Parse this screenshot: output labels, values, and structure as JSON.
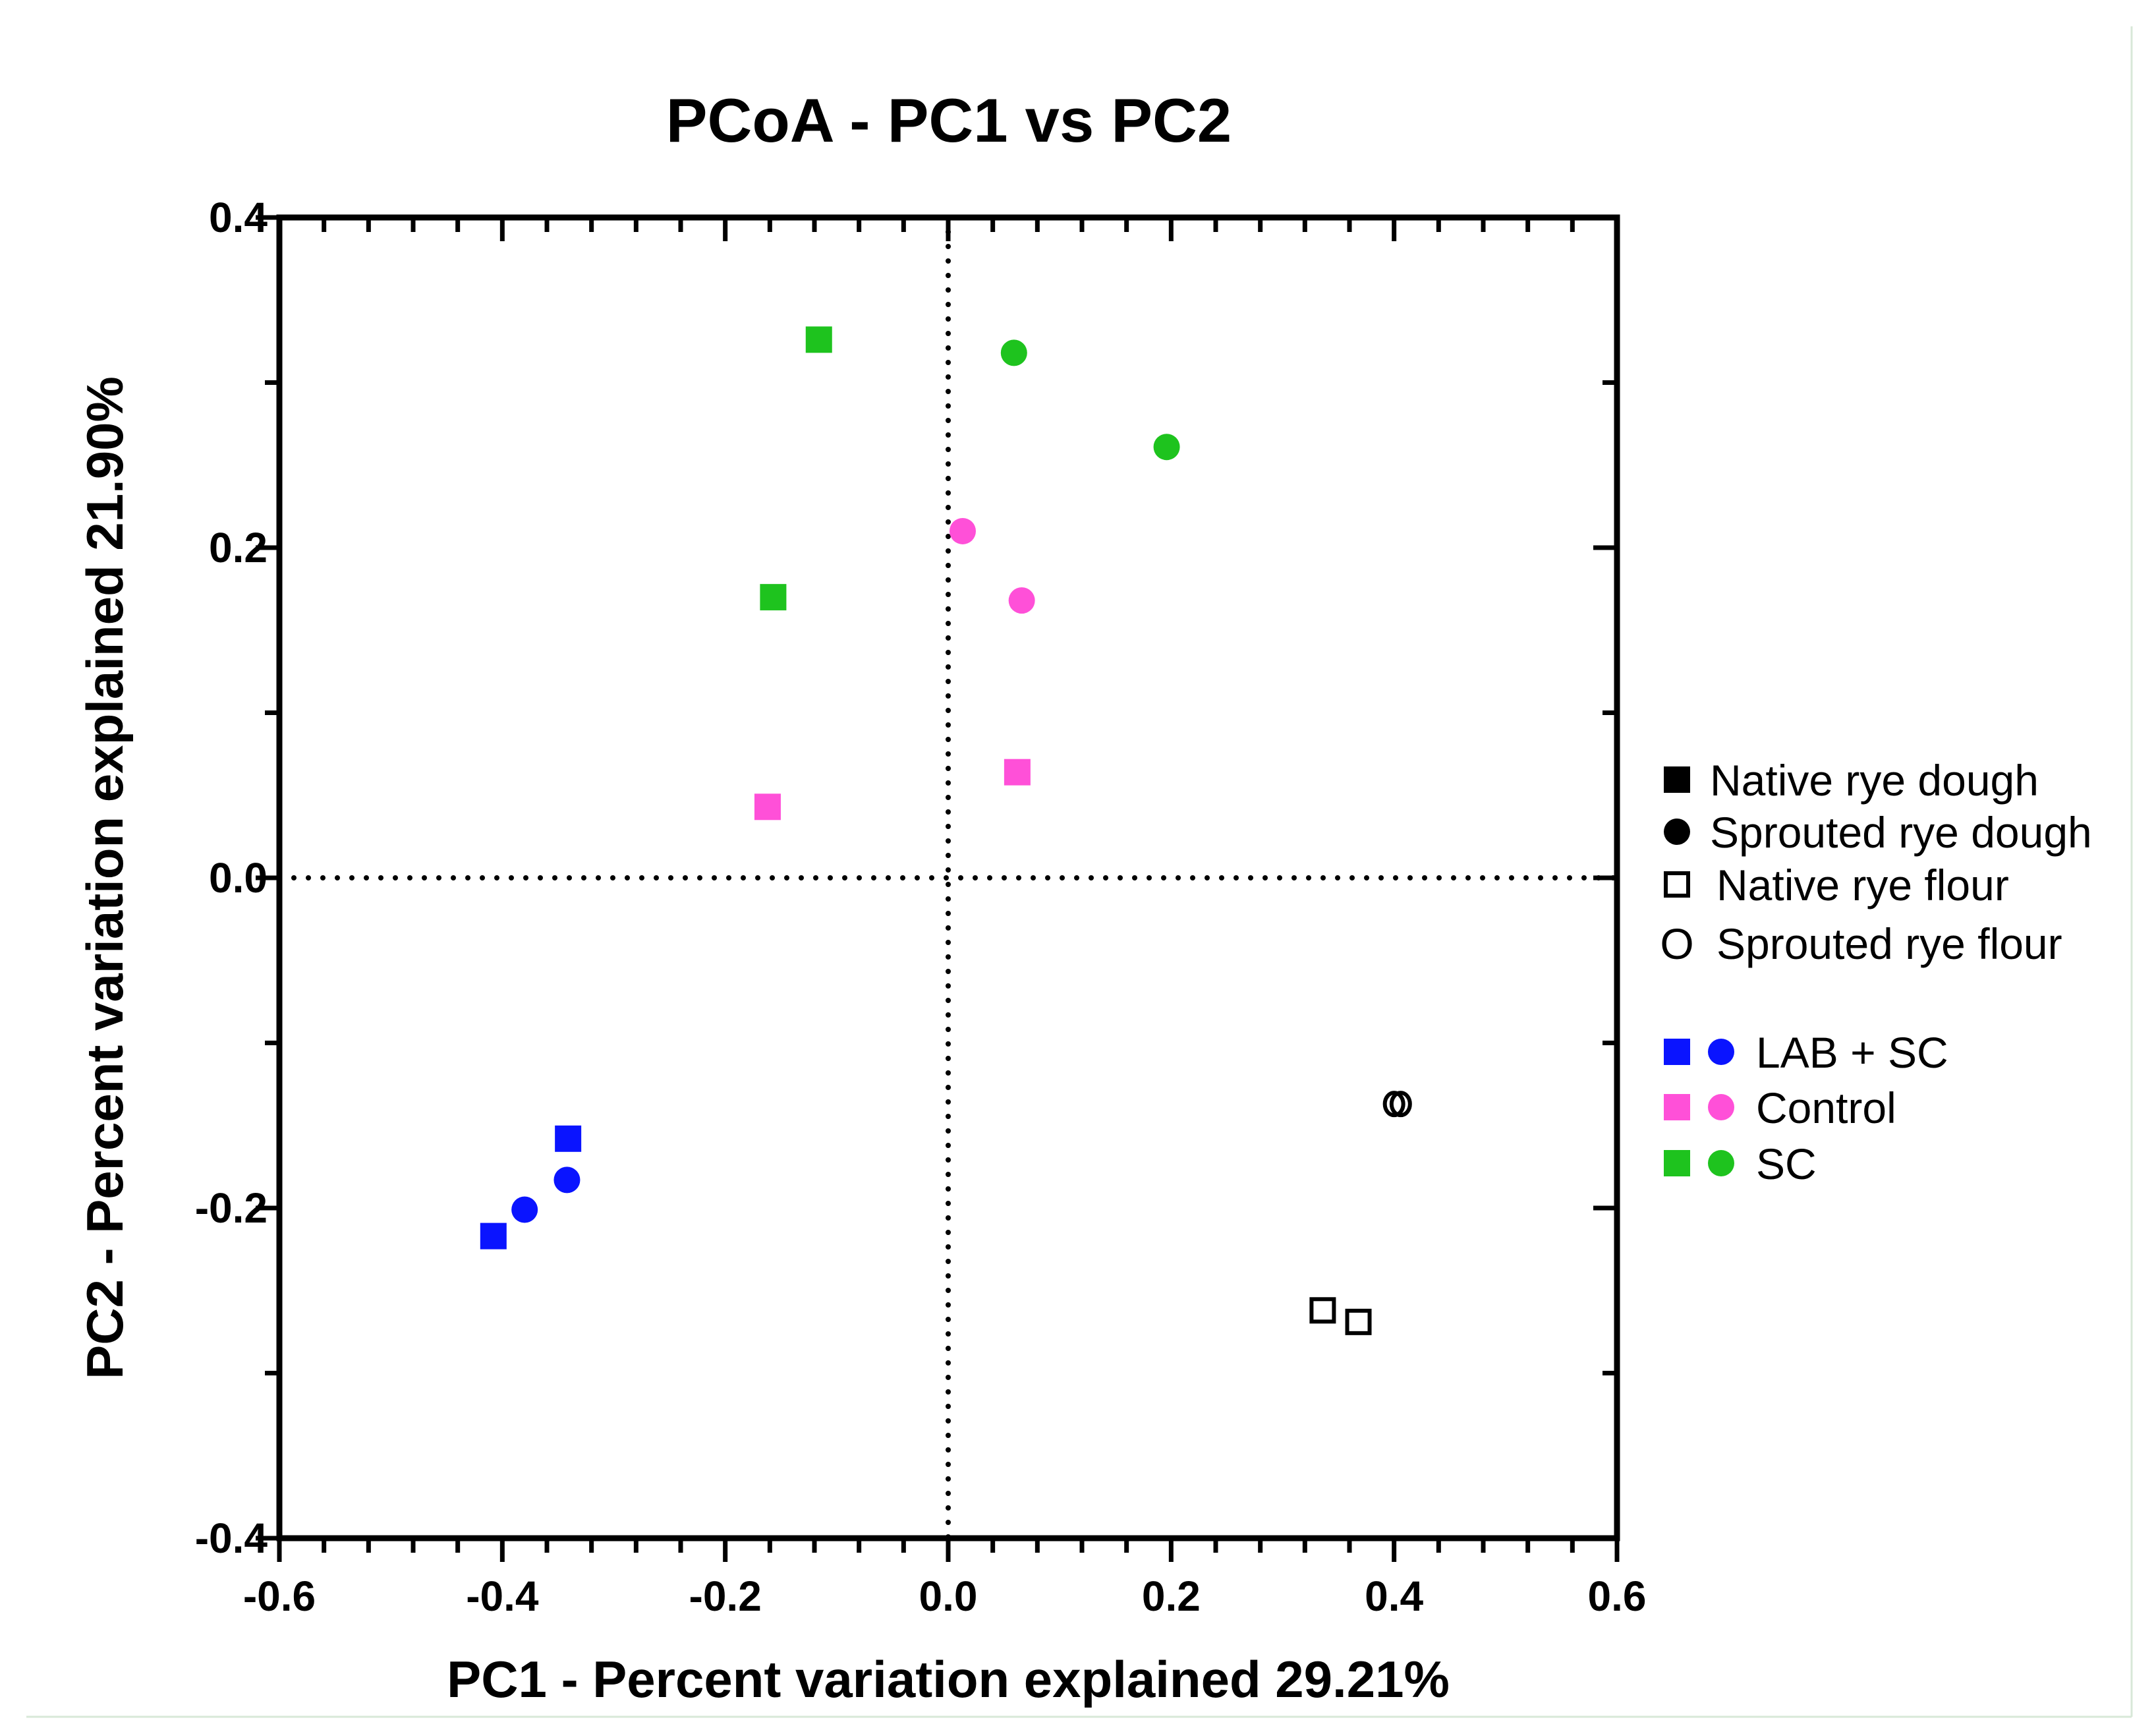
{
  "chart_data": {
    "type": "scatter",
    "title": "PCoA - PC1 vs PC2",
    "xlabel": "PC1 - Percent variation explained 29.21%",
    "ylabel": "PC2 - Percent variation explained 21.90%",
    "xlim": [
      -0.6,
      0.6
    ],
    "ylim": [
      -0.4,
      0.4
    ],
    "x_ticks": [
      "-0.6",
      "-0.4",
      "-0.2",
      "0.0",
      "0.2",
      "0.4",
      "0.6"
    ],
    "y_ticks": [
      "-0.4",
      "-0.2",
      "0.0",
      "0.2",
      "0.4"
    ],
    "reference_lines": {
      "x": 0.0,
      "y": 0.0,
      "style": "dotted"
    },
    "series": [
      {
        "name": "LAB + SC",
        "sample": "Native rye dough",
        "marker": "square-filled",
        "color": "#0a14ff",
        "points": [
          [
            -0.341,
            -0.158
          ],
          [
            -0.408,
            -0.217
          ]
        ]
      },
      {
        "name": "LAB + SC",
        "sample": "Sprouted rye dough",
        "marker": "circle-filled",
        "color": "#0a14ff",
        "points": [
          [
            -0.342,
            -0.183
          ],
          [
            -0.38,
            -0.201
          ]
        ]
      },
      {
        "name": "Control",
        "sample": "Native rye dough",
        "marker": "square-filled",
        "color": "#ff50d8",
        "points": [
          [
            -0.162,
            0.043
          ],
          [
            0.062,
            0.064
          ]
        ]
      },
      {
        "name": "Control",
        "sample": "Sprouted rye dough",
        "marker": "circle-filled",
        "color": "#ff50d8",
        "points": [
          [
            0.013,
            0.21
          ],
          [
            0.066,
            0.168
          ]
        ]
      },
      {
        "name": "SC",
        "sample": "Native rye dough",
        "marker": "square-filled",
        "color": "#1ec31e",
        "points": [
          [
            -0.116,
            0.326
          ],
          [
            -0.157,
            0.17
          ]
        ]
      },
      {
        "name": "SC",
        "sample": "Sprouted rye dough",
        "marker": "circle-filled",
        "color": "#1ec31e",
        "points": [
          [
            0.059,
            0.318
          ],
          [
            0.196,
            0.261
          ]
        ]
      },
      {
        "sample": "Native rye flour",
        "marker": "square-open",
        "color": "#000000",
        "points": [
          [
            0.336,
            -0.262
          ],
          [
            0.368,
            -0.269
          ]
        ]
      },
      {
        "sample": "Sprouted rye flour",
        "marker": "circle-open",
        "color": "#000000",
        "points": [
          [
            0.4,
            -0.137
          ],
          [
            0.406,
            -0.137
          ]
        ]
      }
    ],
    "legend": {
      "placement": "right",
      "shape_entries": [
        {
          "marker": "square-filled",
          "label": "Native rye dough"
        },
        {
          "marker": "circle-filled",
          "label": "Sprouted rye dough"
        },
        {
          "marker": "square-open",
          "label": "Native rye flour"
        },
        {
          "marker": "letter-O",
          "glyph": "O",
          "label": "Sprouted rye flour"
        }
      ],
      "color_entries": [
        {
          "color": "#0a14ff",
          "label": "LAB + SC"
        },
        {
          "color": "#ff50d8",
          "label": "Control"
        },
        {
          "color": "#1ec31e",
          "label": "SC"
        }
      ]
    }
  }
}
